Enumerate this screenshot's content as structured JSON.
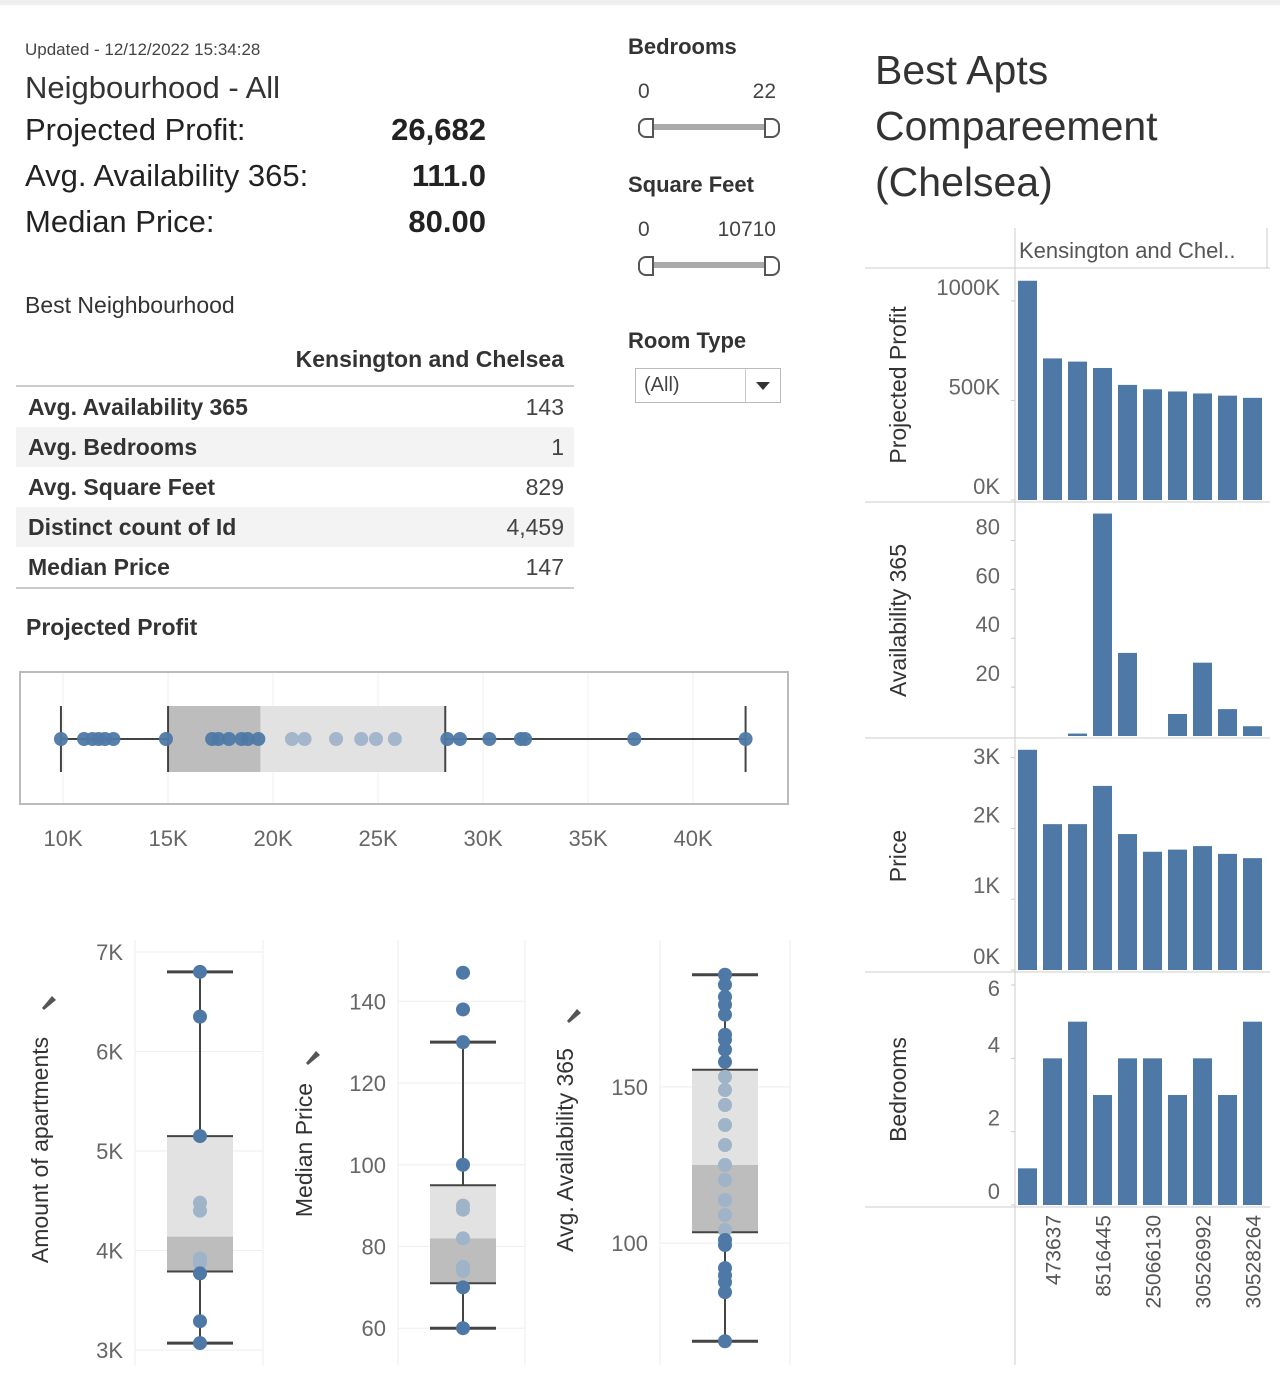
{
  "header": {
    "updated": "Updated - 12/12/2022 15:34:28",
    "neighbourhood": "Neigbourhood - All",
    "kpis": [
      {
        "label": "Projected Profit:",
        "value": "26,682"
      },
      {
        "label": "Avg. Availability 365:",
        "value": "111.0"
      },
      {
        "label": "Median Price:",
        "value": "80.00"
      }
    ]
  },
  "filters": [
    {
      "title": "Bedrooms",
      "min": "0",
      "max": "22"
    },
    {
      "title": "Square Feet",
      "min": "0",
      "max": "10710"
    },
    {
      "title": "Room Type",
      "selected": "(All)"
    }
  ],
  "best_neighbourhood": {
    "title": "Best Neighbourhood",
    "column": "Kensington and Chelsea",
    "rows": [
      [
        "Avg. Availability 365",
        "143"
      ],
      [
        "Avg. Bedrooms",
        "1"
      ],
      [
        "Avg. Square Feet",
        "829"
      ],
      [
        "Distinct count of Id",
        "4,459"
      ],
      [
        "Median Price",
        "147"
      ]
    ]
  },
  "chart_data": [
    {
      "type": "boxplot",
      "orientation": "horizontal",
      "title": "Projected Profit",
      "color": "#4e79a7",
      "values": [
        9900,
        11000,
        11400,
        11700,
        12000,
        12400,
        14900,
        17100,
        17400,
        17900,
        18500,
        18800,
        19300,
        20900,
        21500,
        23000,
        24200,
        24900,
        25800,
        28300,
        28900,
        30300,
        31800,
        32000,
        37200,
        42500
      ],
      "box": {
        "min": 9900,
        "q1": 15000,
        "median": 19400,
        "q3": 28200,
        "max": 42500
      },
      "xlim": [
        7950,
        44520
      ],
      "xticks": [
        {
          "value": 10000,
          "label": "10K"
        },
        {
          "value": 15000,
          "label": "15K"
        },
        {
          "value": 20000,
          "label": "20K"
        },
        {
          "value": 25000,
          "label": "25K"
        },
        {
          "value": 30000,
          "label": "30K"
        },
        {
          "value": 35000,
          "label": "35K"
        },
        {
          "value": 40000,
          "label": "40K"
        }
      ]
    },
    {
      "type": "boxplot",
      "orientation": "vertical",
      "y_label": "Amount of apartments",
      "color": "#4e79a7",
      "values": [
        6800,
        6350,
        5150,
        4480,
        4400,
        3920,
        3870,
        3770,
        3290,
        3070
      ],
      "box": {
        "min": 3070,
        "q1": 3790,
        "median": 4140,
        "q3": 5150,
        "max": 6800
      },
      "ylim": [
        2850,
        7120
      ],
      "yticks": [
        {
          "value": 3000,
          "label": "3K"
        },
        {
          "value": 4000,
          "label": "4K"
        },
        {
          "value": 5000,
          "label": "5K"
        },
        {
          "value": 6000,
          "label": "6K"
        },
        {
          "value": 7000,
          "label": "7K"
        }
      ]
    },
    {
      "type": "boxplot",
      "orientation": "vertical",
      "y_label": "Median Price",
      "color": "#4e79a7",
      "values": [
        147,
        138,
        130,
        100,
        90,
        89,
        82,
        75,
        74,
        70,
        60
      ],
      "box": {
        "min": 60,
        "q1": 71,
        "median": 82,
        "q3": 95,
        "max": 130
      },
      "ylim": [
        51,
        155
      ],
      "yticks": [
        60,
        80,
        100,
        120,
        140
      ]
    },
    {
      "type": "boxplot",
      "orientation": "vertical",
      "y_label": "Avg. Availability 365",
      "color": "#4e79a7",
      "values": [
        185.9,
        182.7,
        178.8,
        176.3,
        173.1,
        166.7,
        165.1,
        161.9,
        158.0,
        153.2,
        149.0,
        144.2,
        137.8,
        131.4,
        125.0,
        120.2,
        113.8,
        109.0,
        104.2,
        101.0,
        99.4,
        92.0,
        89.7,
        87.5,
        84.3,
        68.6
      ],
      "box": {
        "min": 68.6,
        "q1": 103.5,
        "median": 125,
        "q3": 155.5,
        "max": 185.9
      },
      "ylim": [
        61,
        197
      ],
      "yticks": [
        100,
        150
      ]
    },
    {
      "type": "bar",
      "title": "Best Apts Compareement (Chelsea)",
      "column_header": "Kensington and Chel..",
      "color": "#4e79a7",
      "categories": [
        null,
        "473637",
        null,
        "8516445",
        null,
        "25066130",
        null,
        "30526992",
        null,
        "30528264"
      ],
      "panels": [
        {
          "y_label": "Projected Profit",
          "values": [
            1101000,
            711000,
            695000,
            663000,
            578000,
            556000,
            545000,
            535000,
            524000,
            513000
          ],
          "ylim": [
            0,
            1155000
          ],
          "yticks": [
            {
              "value": 0,
              "label": "0K"
            },
            {
              "value": 500000,
              "label": "500K"
            },
            {
              "value": 1000000,
              "label": "1000K"
            }
          ]
        },
        {
          "y_label": "Availability 365",
          "values": [
            0,
            0,
            1,
            91,
            34,
            0,
            9,
            30,
            11,
            4
          ],
          "ylim": [
            0,
            94.5
          ],
          "yticks": [
            20,
            40,
            60,
            80
          ]
        },
        {
          "y_label": "Price",
          "values": [
            3110,
            2060,
            2060,
            2600,
            1920,
            1670,
            1700,
            1750,
            1640,
            1580
          ],
          "ylim": [
            0,
            3220
          ],
          "yticks": [
            {
              "value": 0,
              "label": "0K"
            },
            {
              "value": 1000,
              "label": "1K"
            },
            {
              "value": 2000,
              "label": "2K"
            },
            {
              "value": 3000,
              "label": "3K"
            }
          ]
        },
        {
          "y_label": "Bedrooms",
          "values": [
            1,
            4,
            5,
            3,
            4,
            4,
            3,
            4,
            3,
            5
          ],
          "ylim": [
            0,
            6.3
          ],
          "yticks": [
            0,
            2,
            4,
            6
          ]
        }
      ]
    }
  ]
}
